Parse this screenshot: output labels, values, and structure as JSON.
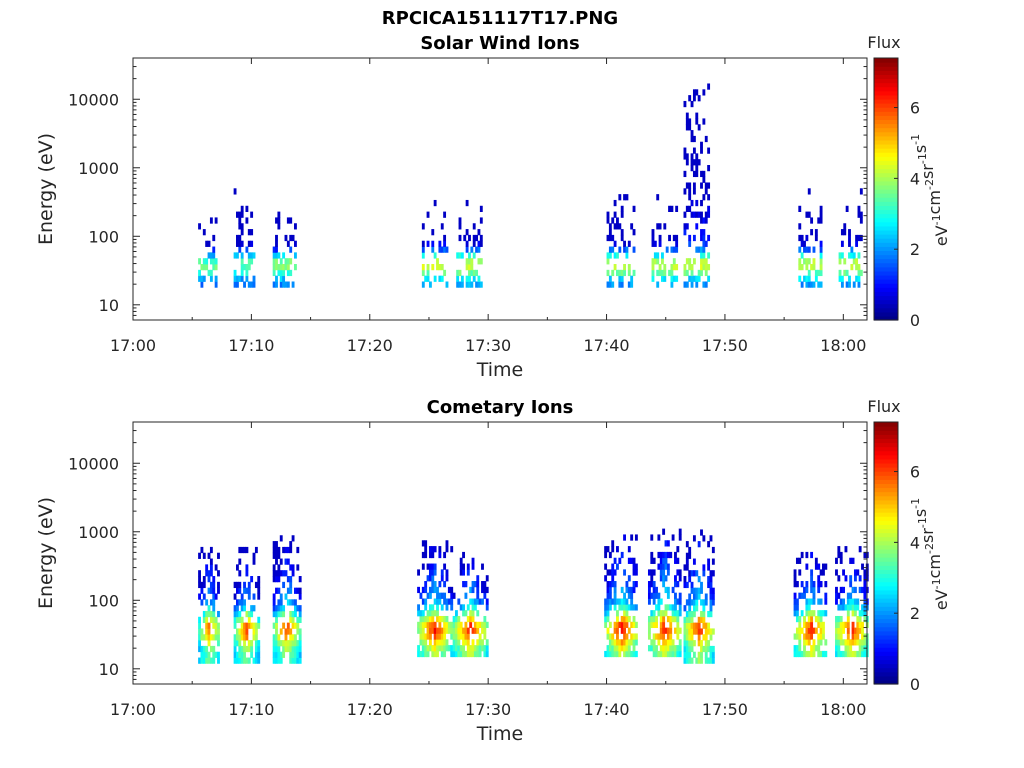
{
  "figure": {
    "title": "RPCICA151117T17.PNG"
  },
  "colorbar": {
    "label": "Flux",
    "unit_main": "eV",
    "unit_parts": [
      "eV",
      "-1",
      "cm",
      "-2",
      "sr",
      "-1",
      "s",
      "-1"
    ],
    "ticks": [
      "0",
      "2",
      "4",
      "6"
    ],
    "range": [
      0,
      7.4
    ],
    "colormap": "jet"
  },
  "chart_data": [
    {
      "type": "heatmap",
      "title": "Solar Wind Ions",
      "xlabel": "Time",
      "ylabel": "Energy (eV)",
      "xlim_minutes": [
        0,
        62
      ],
      "ylim": [
        6,
        40000
      ],
      "yscale": "log",
      "xticks": [
        "17:00",
        "17:10",
        "17:20",
        "17:30",
        "17:40",
        "17:50",
        "18:00"
      ],
      "yticks": [
        "10",
        "100",
        "1000",
        "10000"
      ],
      "ytick_values": [
        10,
        100,
        1000,
        10000
      ],
      "bursts": [
        {
          "start_min": 5.5,
          "end_min": 7.0,
          "emin": 18,
          "emax": 230,
          "peak_flux": 4.2
        },
        {
          "start_min": 8.5,
          "end_min": 10.2,
          "emin": 18,
          "emax": 500,
          "peak_flux": 4.0
        },
        {
          "start_min": 11.8,
          "end_min": 13.7,
          "emin": 18,
          "emax": 250,
          "peak_flux": 4.5
        },
        {
          "start_min": 24.4,
          "end_min": 26.5,
          "emin": 18,
          "emax": 300,
          "peak_flux": 5.0
        },
        {
          "start_min": 27.3,
          "end_min": 29.3,
          "emin": 18,
          "emax": 280,
          "peak_flux": 5.0
        },
        {
          "start_min": 40.0,
          "end_min": 42.3,
          "emin": 18,
          "emax": 400,
          "peak_flux": 4.8
        },
        {
          "start_min": 43.8,
          "end_min": 45.9,
          "emin": 18,
          "emax": 380,
          "peak_flux": 4.8
        },
        {
          "start_min": 46.5,
          "end_min": 48.7,
          "emin": 18,
          "emax": 15000,
          "peak_flux": 4.6
        },
        {
          "start_min": 56.2,
          "end_min": 58.2,
          "emin": 18,
          "emax": 450,
          "peak_flux": 4.8
        },
        {
          "start_min": 59.6,
          "end_min": 61.6,
          "emin": 18,
          "emax": 500,
          "peak_flux": 4.8
        }
      ]
    },
    {
      "type": "heatmap",
      "title": "Cometary Ions",
      "xlabel": "Time",
      "ylabel": "Energy (eV)",
      "xlim_minutes": [
        0,
        62
      ],
      "ylim": [
        6,
        40000
      ],
      "yscale": "log",
      "xticks": [
        "17:00",
        "17:10",
        "17:20",
        "17:30",
        "17:40",
        "17:50",
        "18:00"
      ],
      "yticks": [
        "10",
        "100",
        "1000",
        "10000"
      ],
      "ytick_values": [
        10,
        100,
        1000,
        10000
      ],
      "bursts": [
        {
          "start_min": 5.5,
          "end_min": 7.2,
          "emin": 12,
          "emax": 600,
          "peak_flux": 6.6
        },
        {
          "start_min": 8.5,
          "end_min": 10.5,
          "emin": 12,
          "emax": 500,
          "peak_flux": 6.8
        },
        {
          "start_min": 11.8,
          "end_min": 14.0,
          "emin": 12,
          "emax": 850,
          "peak_flux": 6.8
        },
        {
          "start_min": 24.0,
          "end_min": 26.8,
          "emin": 15,
          "emax": 700,
          "peak_flux": 7.0
        },
        {
          "start_min": 27.0,
          "end_min": 29.8,
          "emin": 15,
          "emax": 500,
          "peak_flux": 7.0
        },
        {
          "start_min": 39.8,
          "end_min": 42.6,
          "emin": 15,
          "emax": 900,
          "peak_flux": 7.1
        },
        {
          "start_min": 43.5,
          "end_min": 46.2,
          "emin": 15,
          "emax": 1000,
          "peak_flux": 7.1
        },
        {
          "start_min": 46.5,
          "end_min": 49.0,
          "emin": 12,
          "emax": 1050,
          "peak_flux": 7.0
        },
        {
          "start_min": 55.8,
          "end_min": 58.6,
          "emin": 15,
          "emax": 500,
          "peak_flux": 7.0
        },
        {
          "start_min": 59.3,
          "end_min": 62.0,
          "emin": 15,
          "emax": 550,
          "peak_flux": 7.0
        }
      ]
    }
  ]
}
